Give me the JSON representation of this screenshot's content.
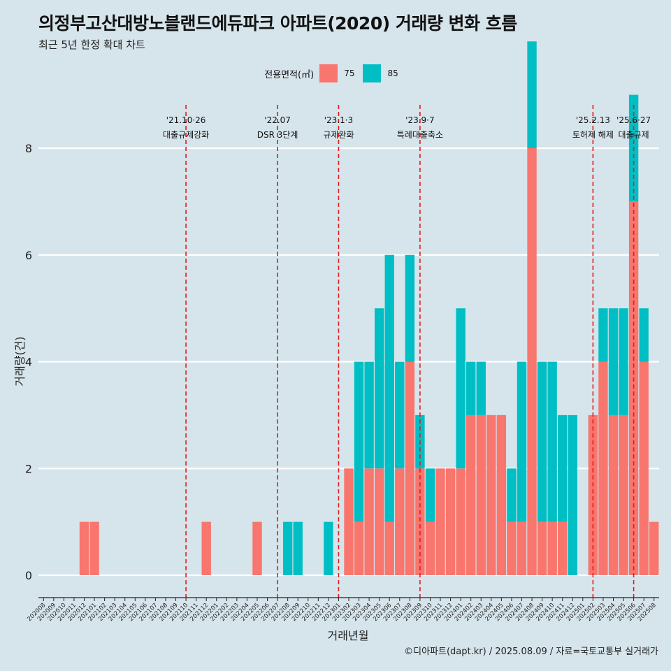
{
  "title": "의정부고산대방노블랜드에듀파크 아파트(2020) 거래량 변화 흐름",
  "subtitle": "최근 5년 한정 확대 차트",
  "source": "©디아파트(dapt.kr) / 2025.08.09 / 자료=국토교통부 실거래가",
  "colors": {
    "background": "#d6e4eb",
    "s75": "#f8766d",
    "s85": "#00bfc4",
    "vline": "#e41a1c",
    "grid": "#ffffff"
  },
  "chart_data": {
    "type": "bar",
    "xlabel": "거래년월",
    "ylabel": "거래량(건)",
    "ylim": [
      0,
      8
    ],
    "yticks": [
      0,
      2,
      4,
      6,
      8
    ],
    "grid": "horizontal major lines",
    "legend": {
      "title": "전용면적(㎡)",
      "position": "top"
    },
    "categories": [
      "202008",
      "202009",
      "202010",
      "202011",
      "202012",
      "202101",
      "202102",
      "202103",
      "202104",
      "202105",
      "202106",
      "202107",
      "202108",
      "202109",
      "202110",
      "202111",
      "202112",
      "202201",
      "202202",
      "202203",
      "202204",
      "202205",
      "202206",
      "202207",
      "202208",
      "202209",
      "202210",
      "202211",
      "202212",
      "202301",
      "202302",
      "202303",
      "202304",
      "202305",
      "202306",
      "202307",
      "202308",
      "202309",
      "202310",
      "202311",
      "202312",
      "202401",
      "202402",
      "202403",
      "202404",
      "202405",
      "202406",
      "202407",
      "202408",
      "202409",
      "202410",
      "202411",
      "202412",
      "202501",
      "202502",
      "202503",
      "202504",
      "202505",
      "202506",
      "202507",
      "202508"
    ],
    "series": [
      {
        "name": "75",
        "color": "#f8766d",
        "values": [
          0,
          0,
          0,
          0,
          1,
          1,
          0,
          0,
          0,
          0,
          0,
          0,
          0,
          0,
          0,
          0,
          1,
          0,
          0,
          0,
          0,
          1,
          0,
          0,
          0,
          0,
          0,
          0,
          0,
          0,
          2,
          1,
          2,
          2,
          1,
          2,
          4,
          2,
          1,
          2,
          2,
          2,
          3,
          3,
          3,
          3,
          1,
          1,
          8,
          1,
          1,
          1,
          0,
          0,
          3,
          4,
          3,
          3,
          7,
          4,
          1
        ]
      },
      {
        "name": "85",
        "color": "#00bfc4",
        "values": [
          0,
          0,
          0,
          0,
          0,
          0,
          0,
          0,
          0,
          0,
          0,
          0,
          0,
          0,
          0,
          0,
          0,
          0,
          0,
          0,
          0,
          0,
          0,
          0,
          1,
          1,
          0,
          0,
          1,
          0,
          0,
          3,
          2,
          3,
          5,
          2,
          2,
          1,
          1,
          0,
          0,
          3,
          1,
          1,
          0,
          0,
          1,
          3,
          2,
          3,
          3,
          2,
          3,
          0,
          0,
          1,
          2,
          2,
          2,
          1,
          0
        ]
      }
    ],
    "events": [
      {
        "date": "'21.10·26",
        "label": "대출규제강화",
        "x": "202110"
      },
      {
        "date": "'22.07",
        "label": "DSR 3단계",
        "x": "202207"
      },
      {
        "date": "'23.1·3",
        "label": "규제완화",
        "x": "202301"
      },
      {
        "date": "'23.9·7",
        "label": "특례대출축소",
        "x": "202309"
      },
      {
        "date": "'25.2.13",
        "label": "토허제 해제",
        "x": "202502"
      },
      {
        "date": "'25.6·27",
        "label": "대출규제",
        "x": "202506"
      }
    ]
  }
}
